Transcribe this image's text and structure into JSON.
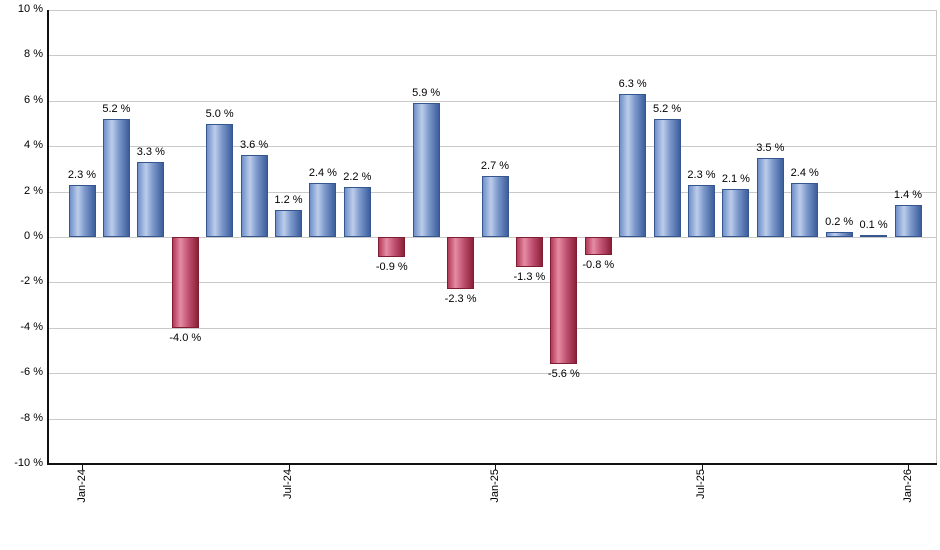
{
  "chart_data": {
    "type": "bar",
    "title": "",
    "xlabel": "",
    "ylabel": "",
    "ylim": [
      -10,
      10
    ],
    "grid": true,
    "legend": false,
    "values": [
      2.3,
      5.2,
      3.3,
      -4.0,
      5.0,
      3.6,
      1.2,
      2.4,
      2.2,
      -0.9,
      5.9,
      -2.3,
      2.7,
      -1.3,
      -5.6,
      -0.8,
      6.3,
      5.2,
      2.3,
      2.1,
      3.5,
      2.4,
      0.2,
      0.1,
      1.4
    ],
    "bar_labels": [
      "2.3 %",
      "5.2 %",
      "3.3 %",
      "-4.0 %",
      "5.0 %",
      "3.6 %",
      "1.2 %",
      "2.4 %",
      "2.2 %",
      "-0.9 %",
      "5.9 %",
      "-2.3 %",
      "2.7 %",
      "-1.3 %",
      "-5.6 %",
      "-0.8 %",
      "6.3 %",
      "5.2 %",
      "2.3 %",
      "2.1 %",
      "3.5 %",
      "2.4 %",
      "0.2 %",
      "0.1 %",
      "1.4 %"
    ],
    "x_ticks": [
      {
        "index": 0,
        "label": "Jan-24"
      },
      {
        "index": 6,
        "label": "Jul-24"
      },
      {
        "index": 12,
        "label": "Jan-25"
      },
      {
        "index": 18,
        "label": "Jul-25"
      },
      {
        "index": 24,
        "label": "Jan-26"
      }
    ],
    "y_ticks": [
      {
        "value": 10,
        "label": "10 %"
      },
      {
        "value": 8,
        "label": "8 %"
      },
      {
        "value": 6,
        "label": "6 %"
      },
      {
        "value": 4,
        "label": "4 %"
      },
      {
        "value": 2,
        "label": "2 %"
      },
      {
        "value": 0,
        "label": "0 %"
      },
      {
        "value": -2,
        "label": "-2 %"
      },
      {
        "value": -4,
        "label": "-4 %"
      },
      {
        "value": -6,
        "label": "-6 %"
      },
      {
        "value": -8,
        "label": "-8 %"
      },
      {
        "value": -10,
        "label": "-10 %"
      }
    ],
    "colors": {
      "positive_bar_gradient": [
        "#6f90c9",
        "#bdcdea",
        "#7f9bcd",
        "#3c5e9d"
      ],
      "positive_bar_border": "#35568f",
      "negative_bar_gradient": [
        "#b43a59",
        "#e58ca4",
        "#c25474",
        "#8c2038"
      ],
      "negative_bar_border": "#7f1d33",
      "gridline": "#c9c9c9",
      "axis": "#111111",
      "label_text": "#000000",
      "background": "#ffffff"
    }
  }
}
